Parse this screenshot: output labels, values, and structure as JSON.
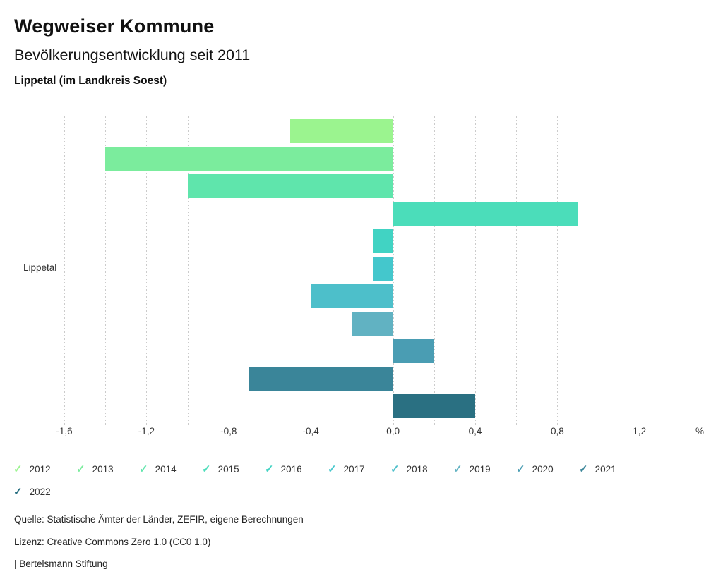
{
  "header": {
    "title": "Wegweiser Kommune",
    "subtitle": "Bevölkerungsentwicklung seit 2011",
    "location": "Lippetal (im Landkreis Soest)"
  },
  "chart_data": {
    "type": "bar",
    "orientation": "horizontal",
    "title": "Bevölkerungsentwicklung seit 2011",
    "category": "Lippetal",
    "unit": "%",
    "xlim": [
      -1.6,
      1.4
    ],
    "gridline_step": 0.2,
    "grid": true,
    "legend_position": "bottom",
    "x_ticks": [
      {
        "value": -1.6,
        "label": "-1,6"
      },
      {
        "value": -1.2,
        "label": "-1,2"
      },
      {
        "value": -0.8,
        "label": "-0,8"
      },
      {
        "value": -0.4,
        "label": "-0,4"
      },
      {
        "value": 0.0,
        "label": "0,0"
      },
      {
        "value": 0.4,
        "label": "0,4"
      },
      {
        "value": 0.8,
        "label": "0,8"
      },
      {
        "value": 1.2,
        "label": "1,2"
      }
    ],
    "series": [
      {
        "name": "2012",
        "value": -0.5,
        "color": "#9bf48f"
      },
      {
        "name": "2013",
        "value": -1.4,
        "color": "#7bec9d"
      },
      {
        "name": "2014",
        "value": -1.0,
        "color": "#5fe5ac"
      },
      {
        "name": "2015",
        "value": 0.9,
        "color": "#4bddba"
      },
      {
        "name": "2016",
        "value": -0.1,
        "color": "#41d3c3"
      },
      {
        "name": "2017",
        "value": -0.1,
        "color": "#44c7cc"
      },
      {
        "name": "2018",
        "value": -0.4,
        "color": "#4dbfca"
      },
      {
        "name": "2019",
        "value": -0.2,
        "color": "#61b2c2"
      },
      {
        "name": "2020",
        "value": 0.2,
        "color": "#4a9db3"
      },
      {
        "name": "2021",
        "value": -0.7,
        "color": "#3a8599"
      },
      {
        "name": "2022",
        "value": 0.4,
        "color": "#2a7082"
      }
    ],
    "legend_check_glyph": "✓"
  },
  "footer": {
    "source": "Quelle: Statistische Ämter der Länder, ZEFIR, eigene Berechnungen",
    "license": "Lizenz: Creative Commons Zero 1.0 (CC0 1.0)",
    "brand": "| Bertelsmann Stiftung"
  }
}
